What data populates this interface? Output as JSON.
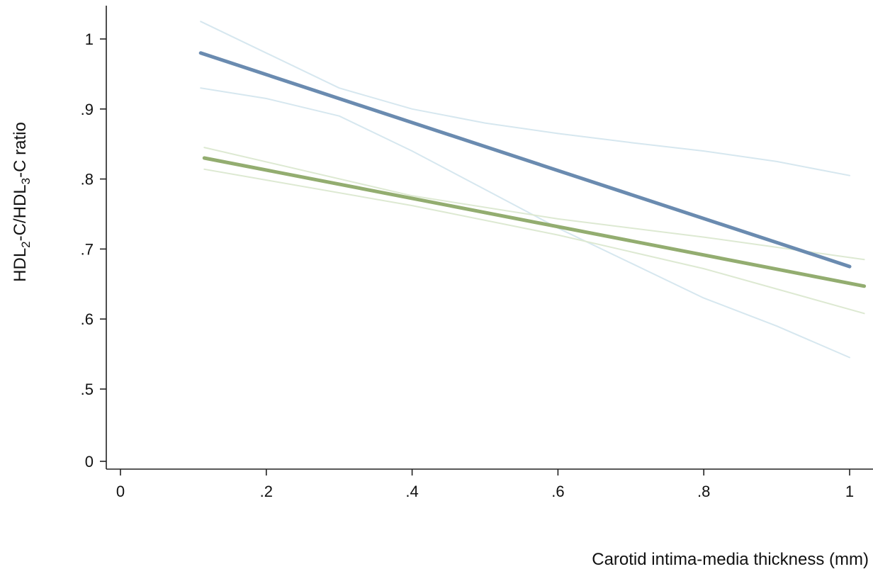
{
  "chart_data": {
    "type": "line",
    "title": "",
    "xlabel": "Carotid intima-media thickness (mm)",
    "ylabel_parts": [
      "HDL",
      "2",
      "-C/HDL",
      "3",
      "-C ratio"
    ],
    "xlim": [
      0,
      1.02
    ],
    "x_ticks": [
      0,
      0.2,
      0.4,
      0.6,
      0.8,
      1
    ],
    "x_tick_labels": [
      "0",
      ".2",
      ".4",
      ".6",
      ".8",
      "1"
    ],
    "y_ticks": [
      0,
      0.5,
      0.6,
      0.7,
      0.8,
      0.9,
      1
    ],
    "y_tick_labels": [
      "0",
      ".5",
      ".6",
      ".7",
      ".8",
      ".9",
      "1"
    ],
    "y_axis_break": {
      "data_min": 0.4,
      "data_max": 1.05
    },
    "grid": false,
    "legend": "none",
    "colors": {
      "blue_fit": "#6a8bb0",
      "blue_ci": "#d6e7ef",
      "green_fit": "#93ad70",
      "green_ci": "#dde9d2",
      "axis": "#222222"
    },
    "series": [
      {
        "role": "fit",
        "color_key": "blue_fit",
        "width": 5,
        "x": [
          0.11,
          1.0
        ],
        "y": [
          0.98,
          0.675
        ]
      },
      {
        "role": "ci-upper",
        "color_key": "blue_ci",
        "width": 2,
        "x": [
          0.11,
          0.2,
          0.3,
          0.4,
          0.5,
          0.6,
          0.7,
          0.8,
          0.9,
          1.0
        ],
        "y": [
          1.025,
          0.98,
          0.93,
          0.9,
          0.88,
          0.865,
          0.852,
          0.84,
          0.825,
          0.805
        ]
      },
      {
        "role": "ci-lower",
        "color_key": "blue_ci",
        "width": 2,
        "x": [
          0.11,
          0.2,
          0.3,
          0.4,
          0.5,
          0.6,
          0.7,
          0.8,
          0.9,
          1.0
        ],
        "y": [
          0.93,
          0.915,
          0.89,
          0.84,
          0.785,
          0.73,
          0.68,
          0.63,
          0.59,
          0.545
        ]
      },
      {
        "role": "fit",
        "color_key": "green_fit",
        "width": 5,
        "x": [
          0.115,
          1.02
        ],
        "y": [
          0.83,
          0.647
        ]
      },
      {
        "role": "ci-upper",
        "color_key": "green_ci",
        "width": 2,
        "x": [
          0.115,
          0.4,
          0.6,
          0.8,
          1.02
        ],
        "y": [
          0.845,
          0.776,
          0.743,
          0.717,
          0.685
        ]
      },
      {
        "role": "ci-lower",
        "color_key": "green_ci",
        "width": 2,
        "x": [
          0.115,
          0.4,
          0.6,
          0.8,
          1.02
        ],
        "y": [
          0.814,
          0.762,
          0.72,
          0.672,
          0.608
        ]
      }
    ]
  }
}
